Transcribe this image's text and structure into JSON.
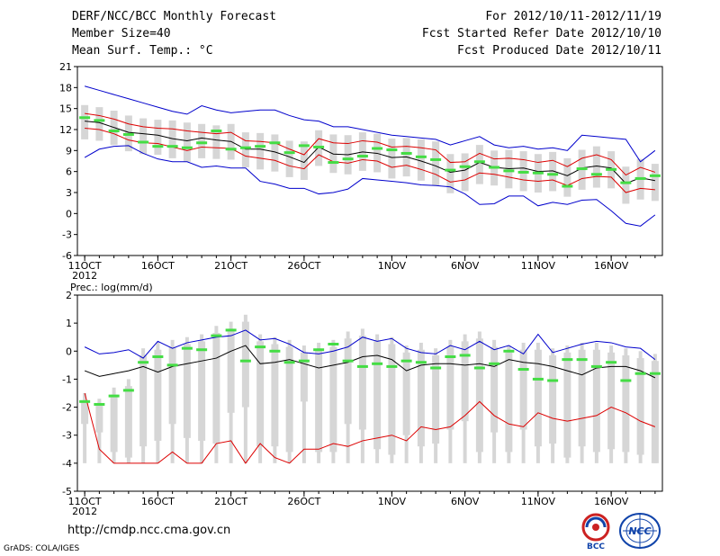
{
  "header": {
    "title": "DERF/NCC/BCC Monthly Forecast",
    "member_size": "Member Size=40",
    "variable": "Mean Surf. Temp.: °C",
    "period": "For 2012/10/11-2012/11/19",
    "started": "Fcst Started Refer Date 2012/10/10",
    "produced": "Fcst Produced Date 2012/10/11"
  },
  "footer": {
    "url": "http://cmdp.ncc.cma.gov.cn",
    "credit": "GrADS: COLA/IGES",
    "logo_left_text": "BCC",
    "logo_right_text": "NCC"
  },
  "colors": {
    "envelope": "#0000cc",
    "quartile": "#dd0000",
    "mean": "#000000",
    "box": "#d6d6d6",
    "observed": "#44dd44"
  },
  "chart_data": [
    {
      "type": "box",
      "title": "Mean Surf. Temp.: °C",
      "x_tick_labels": [
        "11OCT",
        "16OCT",
        "21OCT",
        "26OCT",
        "1NOV",
        "6NOV",
        "11NOV",
        "16NOV"
      ],
      "x_tick_days": [
        1,
        6,
        11,
        16,
        22,
        27,
        32,
        37
      ],
      "year_label": "2012",
      "ylim": [
        -6,
        21
      ],
      "yticks": [
        -6,
        -3,
        0,
        3,
        6,
        9,
        12,
        15,
        18,
        21
      ],
      "days": 40,
      "series": [
        {
          "name": "max",
          "values": [
            18.2,
            17.6,
            17,
            16.4,
            15.8,
            15.2,
            14.6,
            14.2,
            15.4,
            14.8,
            14.4,
            14.6,
            14.8,
            14.8,
            14,
            13.4,
            13.2,
            12.4,
            12.4,
            12,
            11.6,
            11.2,
            11,
            10.8,
            10.6,
            9.8,
            10.4,
            11,
            9.8,
            9.4,
            9.6,
            9.2,
            9.4,
            9,
            11.2,
            11,
            10.8,
            10.6,
            7.4,
            9
          ]
        },
        {
          "name": "upper_quartile",
          "values": [
            14.3,
            14,
            13.5,
            12.8,
            12.4,
            12.2,
            12.1,
            11.8,
            11.6,
            11.4,
            11.6,
            10.4,
            10.3,
            10.1,
            9.2,
            8.4,
            10.7,
            10.1,
            10,
            10.4,
            10.2,
            9.5,
            9.6,
            9.4,
            9.1,
            7.3,
            7.4,
            8.6,
            7.8,
            7.9,
            7.7,
            7.3,
            7.6,
            6.7,
            7.9,
            8.4,
            7.7,
            5.5,
            6.6,
            5.9
          ]
        },
        {
          "name": "mean",
          "values": [
            13.2,
            13,
            12.3,
            11.6,
            11.4,
            11.2,
            10.7,
            10.4,
            10.8,
            10.5,
            10.3,
            9.2,
            9.2,
            8.8,
            8.1,
            7.3,
            9.5,
            8.5,
            8.4,
            8.8,
            8.6,
            8,
            8.1,
            7.5,
            6.8,
            5.9,
            6.2,
            7.3,
            6.6,
            6.4,
            6.5,
            6,
            6.1,
            5.4,
            6.5,
            6.8,
            6.5,
            4.3,
            5.1,
            4.7
          ]
        },
        {
          "name": "lower_quartile",
          "values": [
            12.2,
            12,
            11.4,
            10.5,
            10.1,
            10,
            9.5,
            9,
            9.5,
            9.4,
            9.3,
            8.2,
            7.9,
            7.6,
            6.8,
            6.4,
            8.4,
            7.4,
            7.2,
            7.7,
            7.5,
            6.6,
            6.9,
            6.3,
            5.6,
            4.5,
            4.8,
            5.8,
            5.6,
            5.2,
            4.8,
            4.6,
            4.8,
            4,
            5,
            5.3,
            5.2,
            3,
            3.6,
            3.4
          ]
        },
        {
          "name": "min",
          "values": [
            8,
            9.2,
            9.6,
            9.7,
            8.6,
            7.8,
            7.4,
            7.4,
            6.6,
            6.8,
            6.5,
            6.5,
            4.6,
            4.2,
            3.6,
            3.6,
            2.8,
            3,
            3.5,
            5,
            4.8,
            4.6,
            4.4,
            4.1,
            4,
            3.8,
            2.8,
            1.3,
            1.4,
            2.5,
            2.5,
            1.1,
            1.6,
            1.3,
            1.9,
            2,
            0.4,
            -1.4,
            -1.8,
            -0.2
          ]
        },
        {
          "name": "observed",
          "values": [
            13.7,
            13.3,
            11.8,
            11.3,
            10.2,
            9.6,
            9.6,
            9.4,
            10.1,
            11.8,
            9.2,
            9.4,
            9.6,
            10.1,
            8.7,
            9.7,
            9.5,
            7.3,
            7.8,
            8.2,
            9.3,
            9.1,
            8.6,
            8.1,
            7.7,
            6.2,
            6.7,
            7.4,
            6.6,
            6.1,
            5.9,
            5.8,
            5.6,
            3.9,
            6.4,
            5.6,
            6.3,
            4.4,
            5,
            5.4
          ]
        }
      ]
    },
    {
      "type": "box",
      "title": "Prec.: log(mm/d)",
      "x_tick_labels": [
        "11OCT",
        "16OCT",
        "21OCT",
        "26OCT",
        "1NOV",
        "6NOV",
        "11NOV",
        "16NOV"
      ],
      "x_tick_days": [
        1,
        6,
        11,
        16,
        22,
        27,
        32,
        37
      ],
      "year_label": "2012",
      "ylim": [
        -5,
        2
      ],
      "yticks": [
        -5,
        -4,
        -3,
        -2,
        -1,
        0,
        1,
        2
      ],
      "days": 40,
      "series": [
        {
          "name": "max",
          "values": [
            0.15,
            -0.1,
            -0.05,
            0.05,
            -0.25,
            0.35,
            0.1,
            0.3,
            0.4,
            0.5,
            0.55,
            0.75,
            0.4,
            0.45,
            0.25,
            -0.05,
            -0.1,
            0,
            0.15,
            0.5,
            0.35,
            0.45,
            0.1,
            -0.05,
            -0.1,
            0.2,
            0.05,
            0.35,
            0.05,
            0.2,
            -0.1,
            0.6,
            -0.05,
            0.1,
            0.25,
            0.35,
            0.3,
            0.15,
            0.1,
            -0.3
          ]
        },
        {
          "name": "mean",
          "values": [
            -0.7,
            -0.9,
            -0.8,
            -0.7,
            -0.55,
            -0.75,
            -0.55,
            -0.45,
            -0.35,
            -0.25,
            0,
            0.2,
            -0.45,
            -0.4,
            -0.3,
            -0.45,
            -0.6,
            -0.5,
            -0.4,
            -0.2,
            -0.15,
            -0.3,
            -0.7,
            -0.5,
            -0.45,
            -0.45,
            -0.5,
            -0.45,
            -0.55,
            -0.3,
            -0.4,
            -0.45,
            -0.55,
            -0.7,
            -0.85,
            -0.6,
            -0.55,
            -0.55,
            -0.7,
            -0.95
          ]
        },
        {
          "name": "min",
          "values": [
            -1.5,
            -3.5,
            -4,
            -4,
            -4,
            -4,
            -3.6,
            -4,
            -4,
            -3.3,
            -3.2,
            -4,
            -3.3,
            -3.8,
            -4,
            -3.5,
            -3.5,
            -3.3,
            -3.4,
            -3.2,
            -3.1,
            -3,
            -3.2,
            -2.7,
            -2.8,
            -2.7,
            -2.3,
            -1.8,
            -2.3,
            -2.6,
            -2.7,
            -2.2,
            -2.4,
            -2.5,
            -2.4,
            -2.3,
            -2,
            -2.2,
            -2.5,
            -2.7
          ]
        },
        {
          "name": "observed",
          "values": [
            -1.8,
            -1.9,
            -1.6,
            -1.4,
            -0.4,
            -0.2,
            -0.5,
            0.1,
            0.05,
            0.55,
            0.75,
            -0.35,
            0.15,
            0,
            -0.4,
            -0.35,
            0.05,
            0.25,
            -0.35,
            -0.55,
            -0.45,
            -0.55,
            -0.35,
            -0.4,
            -0.6,
            -0.2,
            -0.15,
            -0.6,
            -0.45,
            0,
            -0.65,
            -1,
            -1.05,
            -0.3,
            -0.3,
            -0.55,
            -0.4,
            -1.05,
            -0.8,
            -0.8
          ]
        },
        {
          "name": "box_top",
          "values": [
            -1.5,
            -1.7,
            -1.3,
            -1,
            0.1,
            0.3,
            0.4,
            0.5,
            0.6,
            0.9,
            1.05,
            1.3,
            0.6,
            0.5,
            0.4,
            0.2,
            0.3,
            0.4,
            0.7,
            0.8,
            0.6,
            0.5,
            0.2,
            0.3,
            0.1,
            0.4,
            0.6,
            0.7,
            0.4,
            0.2,
            0.3,
            0.3,
            0.1,
            0.2,
            0.3,
            0.3,
            0.2,
            0.1,
            0,
            -0.1
          ]
        },
        {
          "name": "box_bottom",
          "values": [
            -2.6,
            -2.9,
            -3.6,
            -3.8,
            -3.4,
            -3.2,
            -2.6,
            -3.1,
            -3.2,
            -3.3,
            -2.2,
            -2,
            -3.4,
            -3.4,
            -3.6,
            -1.8,
            -3.6,
            -3.6,
            -2.6,
            -2.8,
            -3.5,
            -3.7,
            -3,
            -3.4,
            -3.3,
            -2.8,
            -2.5,
            -3.6,
            -2.9,
            -3.6,
            -2.8,
            -3.4,
            -3.3,
            -3.8,
            -3.4,
            -3.6,
            -3.5,
            -3.6,
            -3.7,
            -4
          ]
        },
        {
          "name": "box_floor",
          "values": [
            -4,
            -4,
            -4,
            -4,
            -4,
            -4,
            -4,
            -4,
            -4,
            -4,
            -4,
            -4,
            -4,
            -4,
            -4,
            -4,
            -4,
            -4,
            -4,
            -4,
            -4,
            -4,
            -4,
            -4,
            -4,
            -4,
            -4,
            -4,
            -4,
            -4,
            -4,
            -4,
            -4,
            -4,
            -4,
            -4,
            -4,
            -4,
            -4,
            -4
          ]
        }
      ]
    }
  ]
}
